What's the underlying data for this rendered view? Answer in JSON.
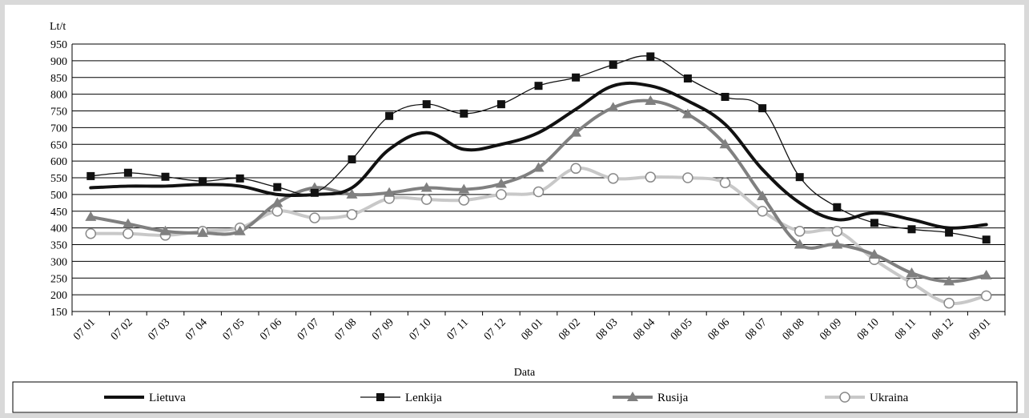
{
  "chart_data": {
    "type": "line",
    "ylabel": "Lt/t",
    "xlabel": "Data",
    "ylim": [
      150,
      950
    ],
    "ytick_step": 50,
    "grid": "horizontal",
    "legend_placement": "bottom",
    "categories": [
      "07 01",
      "07 02",
      "07 03",
      "07 04",
      "07 05",
      "07 06",
      "07 07",
      "07 08",
      "07 09",
      "07 10",
      "07 11",
      "07 12",
      "08 01",
      "08 02",
      "08 03",
      "08 04",
      "08 05",
      "08 06",
      "08 07",
      "08 08",
      "08 09",
      "08 10",
      "08 11",
      "08 12",
      "09 01"
    ],
    "series": [
      {
        "name": "Lietuva",
        "color": "#111111",
        "width": 4,
        "marker": "none",
        "values": [
          520,
          525,
          525,
          530,
          525,
          500,
          500,
          520,
          635,
          685,
          635,
          650,
          685,
          755,
          825,
          825,
          780,
          710,
          575,
          475,
          425,
          445,
          425,
          400,
          410
        ]
      },
      {
        "name": "Lenkija",
        "color": "#111111",
        "width": 1.3,
        "marker": "square",
        "values": [
          555,
          565,
          553,
          540,
          548,
          522,
          505,
          605,
          735,
          770,
          742,
          770,
          825,
          850,
          888,
          913,
          847,
          792,
          758,
          552,
          462,
          415,
          396,
          386,
          365
        ]
      },
      {
        "name": "Rusija",
        "color": "#808080",
        "width": 4,
        "marker": "triangle",
        "values": [
          433,
          412,
          390,
          385,
          390,
          475,
          520,
          500,
          505,
          520,
          515,
          532,
          580,
          685,
          760,
          780,
          740,
          650,
          495,
          350,
          350,
          320,
          265,
          240,
          258
        ]
      },
      {
        "name": "Ukraina",
        "color": "#c8c8c8",
        "width": 4,
        "marker": "circle",
        "values": [
          383,
          383,
          378,
          390,
          400,
          450,
          430,
          440,
          488,
          485,
          483,
          500,
          508,
          578,
          548,
          552,
          550,
          535,
          450,
          390,
          390,
          305,
          235,
          175,
          197
        ]
      }
    ]
  }
}
